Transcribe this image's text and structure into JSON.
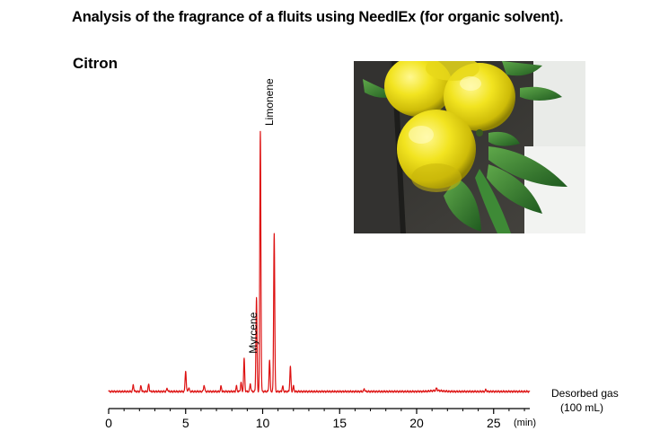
{
  "title": "Analysis of the fragrance of a fluits using NeedlEx (for organic solvent).",
  "subtitle": "Citron",
  "photo_icon": "citron-fruit-photo",
  "note": {
    "line1": "Desorbed gas",
    "line2": "(100 mL)"
  },
  "colors": {
    "trace": "#dd1111",
    "axis": "#000000"
  },
  "chart_data": {
    "type": "line",
    "title": "Citron",
    "xlabel": "(min)",
    "ylabel": "",
    "xlim": [
      0,
      27.5
    ],
    "ylim": [
      0,
      100
    ],
    "grid": false,
    "x_ticks": [
      0,
      5,
      10,
      15,
      20,
      25
    ],
    "x_tick_labels": [
      "0",
      "5",
      "10",
      "15",
      "20",
      "25"
    ],
    "baseline": 1.5,
    "series": [
      {
        "peaks": [
          {
            "rt": 1.6,
            "height": 2.5
          },
          {
            "rt": 2.1,
            "height": 2.2
          },
          {
            "rt": 2.6,
            "height": 2.8
          },
          {
            "rt": 3.8,
            "height": 1.2
          },
          {
            "rt": 5.0,
            "height": 8.0
          },
          {
            "rt": 5.2,
            "height": 1.5
          },
          {
            "rt": 6.2,
            "height": 2.5
          },
          {
            "rt": 7.3,
            "height": 2.0
          },
          {
            "rt": 8.3,
            "height": 2.0
          },
          {
            "rt": 8.6,
            "height": 3.5
          },
          {
            "rt": 8.8,
            "height": 12.5
          },
          {
            "rt": 9.2,
            "height": 3.0
          },
          {
            "rt": 9.6,
            "height": 36.0
          },
          {
            "rt": 9.85,
            "height": 100.0
          },
          {
            "rt": 10.45,
            "height": 12.0
          },
          {
            "rt": 10.75,
            "height": 61.0
          },
          {
            "rt": 11.3,
            "height": 2.0
          },
          {
            "rt": 11.8,
            "height": 9.5
          },
          {
            "rt": 12.0,
            "height": 2.0
          },
          {
            "rt": 16.6,
            "height": 1.0
          },
          {
            "rt": 21.3,
            "height": 1.0
          },
          {
            "rt": 24.5,
            "height": 0.7
          }
        ]
      }
    ],
    "annotations": [
      {
        "text": "Myrcene",
        "x": 8.8
      },
      {
        "text": "Limonene",
        "x": 9.85
      }
    ]
  }
}
